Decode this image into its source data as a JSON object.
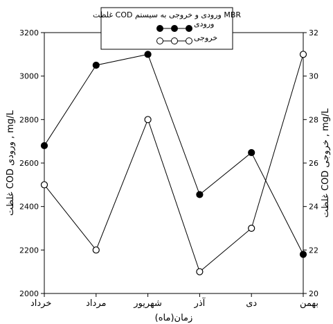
{
  "chart_data": {
    "type": "line",
    "title": "غلظت COD ورودی و خروجی به سیستم MBR",
    "categories": [
      "خرداد",
      "مرداد",
      "شهریور",
      "آذر",
      "دی",
      "بهمن"
    ],
    "xlabel": "زمان(ماه)",
    "ylabel_left": "غلظت COD ورودی , mg/L",
    "ylabel_right": "غلظت COD خروجی , mg/L",
    "ylim_left": [
      2000,
      3200
    ],
    "ylim_right": [
      20,
      32
    ],
    "yticks_left": [
      "2000",
      "2200",
      "2400",
      "2600",
      "2800",
      "3000",
      "3200"
    ],
    "yticks_right": [
      "20",
      "22",
      "24",
      "26",
      "28",
      "30",
      "32"
    ],
    "grid": false,
    "legend_position": "top-center",
    "series": [
      {
        "name": "ورودی",
        "axis": "left",
        "marker": "filled-circle",
        "color": "#000000",
        "values": [
          2680,
          3050,
          3100,
          2455,
          2648,
          2180
        ]
      },
      {
        "name": "خروجی",
        "axis": "right",
        "marker": "open-circle",
        "color": "#000000",
        "values": [
          25,
          22,
          28,
          21,
          23,
          31
        ]
      }
    ]
  }
}
